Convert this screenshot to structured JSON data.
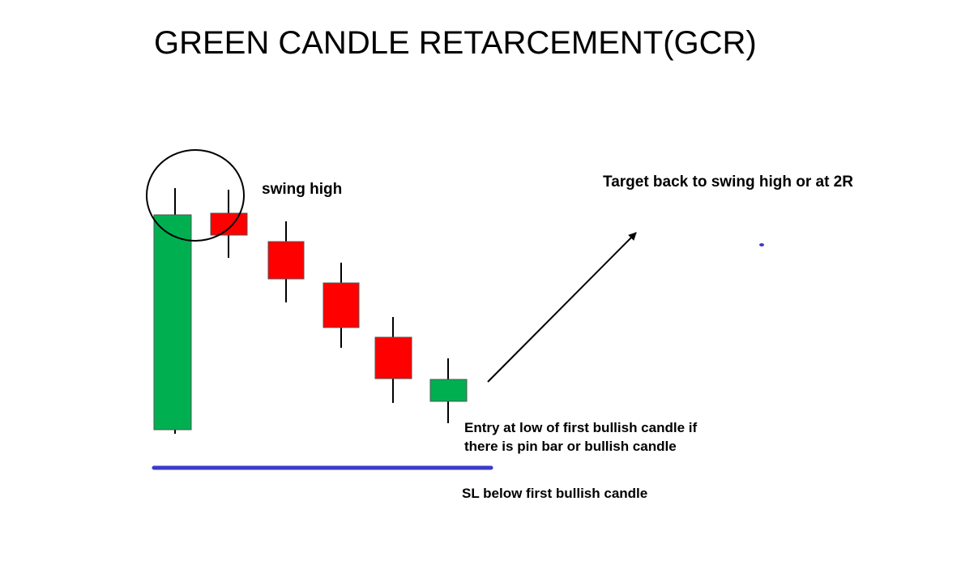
{
  "title": "GREEN CANDLE RETARCEMENT(GCR)",
  "annotations": {
    "swing_high": "swing high",
    "target": "Target back to swing high or at 2R",
    "entry": [
      "Entry at low of first bullish candle if",
      "there is pin bar or bullish candle"
    ],
    "stop_loss": "SL below first bullish candle"
  }
}
